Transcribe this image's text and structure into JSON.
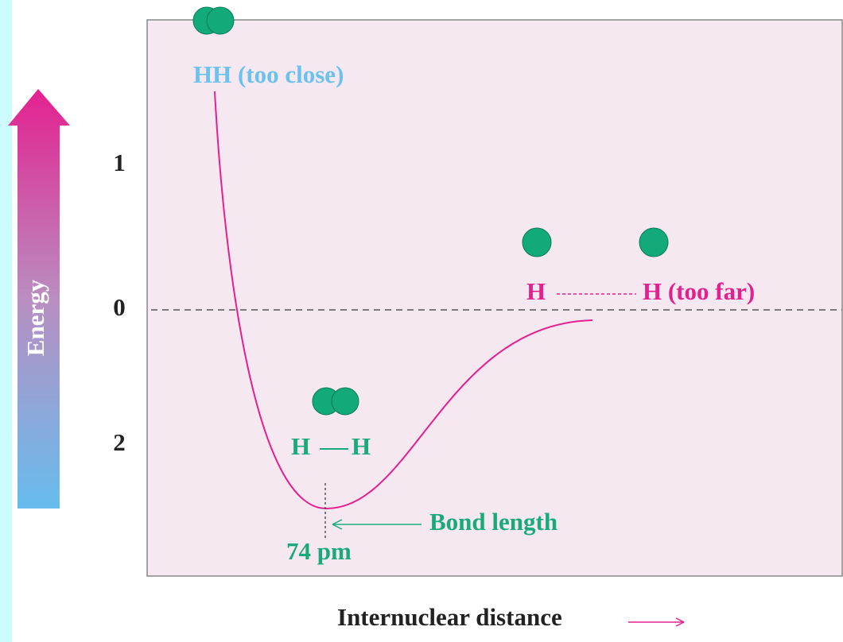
{
  "diagram": {
    "top_label": "HH (too close)",
    "energy_ticks": [
      "1",
      "0",
      "2"
    ],
    "axis_y": "Energy",
    "far_left": "H",
    "far_right": "H (too far)",
    "bond_left": "H",
    "bond_right": "H",
    "bond_length": "Bond length",
    "bond_value": "74 pm",
    "axis_x": "Internuclear distance"
  }
}
